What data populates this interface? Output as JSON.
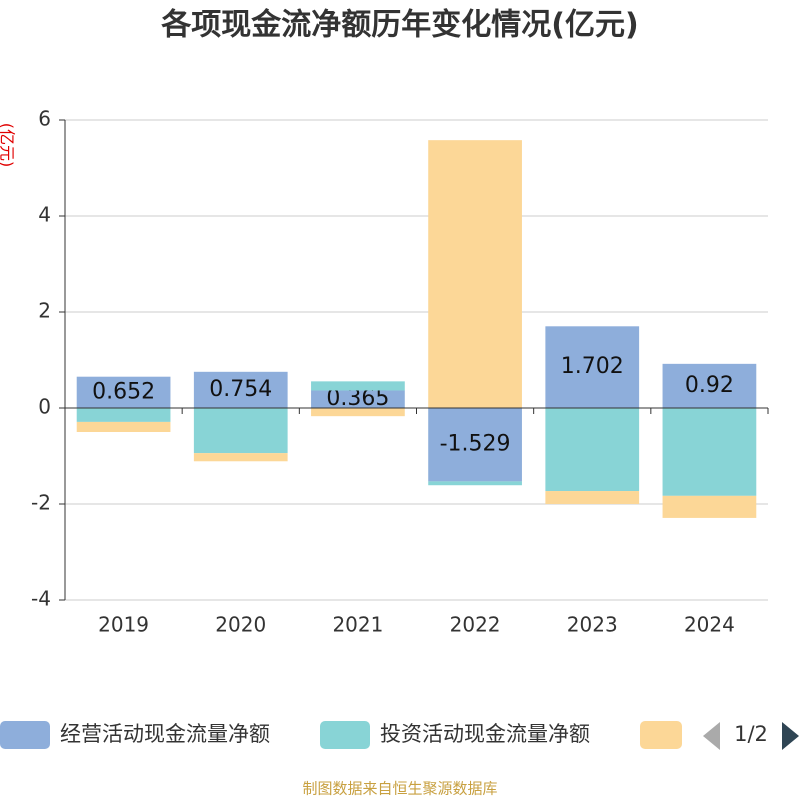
{
  "chart_data": {
    "type": "bar",
    "stacked": true,
    "title": "各项现金流净额历年变化情况(亿元)",
    "y_axis_label": "(亿元)",
    "categories": [
      "2019",
      "2020",
      "2021",
      "2022",
      "2023",
      "2024"
    ],
    "series": [
      {
        "name": "经营活动现金流量净额",
        "color": "#8eaedb",
        "values": [
          0.652,
          0.754,
          0.365,
          -1.529,
          1.702,
          0.92
        ]
      },
      {
        "name": "投资活动现金流量净额",
        "color": "#88d4d6",
        "values": [
          -0.29,
          -0.94,
          0.19,
          -0.08,
          -1.73,
          -1.83
        ]
      },
      {
        "color": "#fcd797",
        "values": [
          -0.21,
          -0.17,
          -0.17,
          5.58,
          -0.27,
          -0.46
        ]
      }
    ],
    "ylim": [
      -4,
      6
    ],
    "yticks": [
      -4,
      -2,
      0,
      2,
      4,
      6
    ],
    "grid": true,
    "legend_page": "1/2",
    "source": "制图数据来自恒生聚源数据库"
  }
}
